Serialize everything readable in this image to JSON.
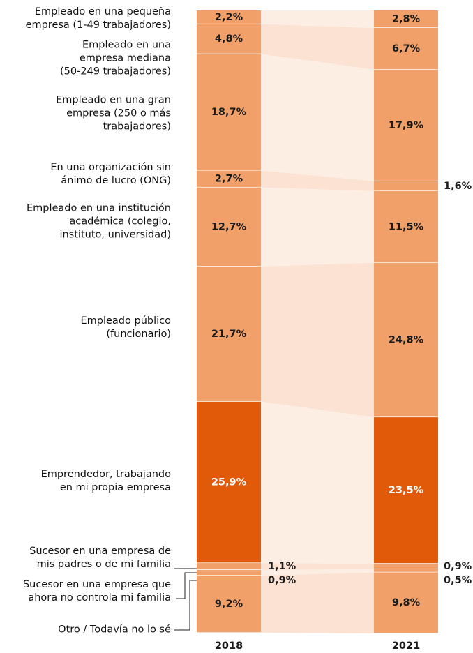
{
  "chart_data": {
    "type": "stacked_bar",
    "categories": [
      "2018",
      "2021"
    ],
    "series": [
      {
        "name": "Empleado en una pequeña\nempresa (1-49 trabajadores)",
        "color": "#f0a068",
        "values": [
          2.2,
          2.8
        ],
        "value_labels": [
          "2,2%",
          "2,8%"
        ]
      },
      {
        "name": "Empleado en una\nempresa mediana\n(50-249 trabajadores)",
        "color": "#f0a068",
        "values": [
          4.8,
          6.7
        ],
        "value_labels": [
          "4,8%",
          "6,7%"
        ]
      },
      {
        "name": "Empleado en una gran\nempresa (250 o más\ntrabajadores)",
        "color": "#f0a068",
        "values": [
          18.7,
          17.9
        ],
        "value_labels": [
          "18,7%",
          "17,9%"
        ]
      },
      {
        "name": "En una organización sin\nánimo de lucro (ONG)",
        "color": "#f0a068",
        "values": [
          2.7,
          1.6
        ],
        "value_labels": [
          "2,7%",
          "1,6%"
        ]
      },
      {
        "name": "Empleado en una institución\nacadémica (colegio,\ninstituto, universidad)",
        "color": "#f0a068",
        "values": [
          12.7,
          11.5
        ],
        "value_labels": [
          "12,7%",
          "11,5%"
        ]
      },
      {
        "name": "Empleado público\n(funcionario)",
        "color": "#f0a068",
        "values": [
          21.7,
          24.8
        ],
        "value_labels": [
          "21,7%",
          "24,8%"
        ]
      },
      {
        "name": "Emprendedor, trabajando\nen mi propia empresa",
        "color": "#e05a0a",
        "values": [
          25.9,
          23.5
        ],
        "value_labels": [
          "25,9%",
          "23,5%"
        ]
      },
      {
        "name": "Sucesor en una empresa de\nmis padres o de mi familia",
        "color": "#f0a068",
        "values": [
          1.1,
          0.9
        ],
        "value_labels": [
          "1,1%",
          "0,9%"
        ]
      },
      {
        "name": "Sucesor en una empresa que\nahora no controla mi familia",
        "color": "#f0a068",
        "values": [
          0.9,
          0.5
        ],
        "value_labels": [
          "0,9%",
          "0,5%"
        ]
      },
      {
        "name": "Otro / Todavía no lo sé",
        "color": "#f0a068",
        "values": [
          9.2,
          9.8
        ],
        "value_labels": [
          "9,2%",
          "9,8%"
        ]
      }
    ],
    "ylim": [
      0,
      100
    ]
  }
}
